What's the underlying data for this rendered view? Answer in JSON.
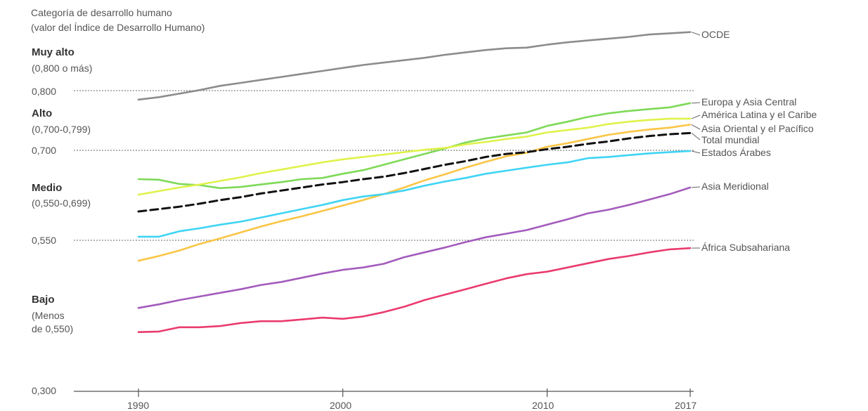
{
  "chart_data": {
    "type": "line",
    "title_line1": "Categoría de desarrollo humano",
    "title_line2": "(valor del Índice de Desarrollo Humano)",
    "categories_text": [
      {
        "name": "Muy alto",
        "range": "(0,800 o más)"
      },
      {
        "name": "Alto",
        "range": "(0,700-0,799)"
      },
      {
        "name": "Medio",
        "range": "(0,550-0,699)"
      },
      {
        "name": "Bajo",
        "range_line1": "(Menos",
        "range_line2": "de 0,550)"
      }
    ],
    "y_ticks": [
      {
        "value": 0.3,
        "label": "0,300"
      },
      {
        "value": 0.55,
        "label": "0,550"
      },
      {
        "value": 0.7,
        "label": "0,700"
      },
      {
        "value": 0.8,
        "label": "0,800"
      }
    ],
    "x_ticks": [
      {
        "value": 1990,
        "label": "1990"
      },
      {
        "value": 2000,
        "label": "2000"
      },
      {
        "value": 2010,
        "label": "2010"
      },
      {
        "value": 2017,
        "label": "2017"
      }
    ],
    "x": [
      1990,
      1991,
      1992,
      1993,
      1994,
      1995,
      1996,
      1997,
      1998,
      1999,
      2000,
      2001,
      2002,
      2003,
      2004,
      2005,
      2006,
      2007,
      2008,
      2009,
      2010,
      2011,
      2012,
      2013,
      2014,
      2015,
      2016,
      2017
    ],
    "series": [
      {
        "name": "OCDE",
        "color": "#8c8c8c",
        "dashed": false,
        "values": [
          0.785,
          0.789,
          0.795,
          0.801,
          0.808,
          0.813,
          0.818,
          0.823,
          0.828,
          0.833,
          0.838,
          0.843,
          0.847,
          0.851,
          0.855,
          0.86,
          0.864,
          0.868,
          0.871,
          0.872,
          0.877,
          0.881,
          0.884,
          0.887,
          0.89,
          0.894,
          0.896,
          0.898
        ]
      },
      {
        "name": "Europa y Asia Central",
        "color": "#7ed957",
        "dashed": false,
        "values": [
          0.652,
          0.651,
          0.644,
          0.642,
          0.637,
          0.639,
          0.643,
          0.647,
          0.652,
          0.654,
          0.661,
          0.667,
          0.676,
          0.685,
          0.694,
          0.703,
          0.713,
          0.72,
          0.725,
          0.73,
          0.741,
          0.748,
          0.756,
          0.762,
          0.766,
          0.769,
          0.772,
          0.779
        ]
      },
      {
        "name": "América Latina y el Caribe",
        "color": "#dff24a",
        "dashed": false,
        "values": [
          0.626,
          0.632,
          0.638,
          0.643,
          0.649,
          0.655,
          0.662,
          0.668,
          0.674,
          0.68,
          0.685,
          0.689,
          0.693,
          0.697,
          0.701,
          0.704,
          0.71,
          0.714,
          0.719,
          0.723,
          0.73,
          0.734,
          0.738,
          0.744,
          0.748,
          0.751,
          0.753,
          0.753
        ]
      },
      {
        "name": "Asia Oriental y el Pacífico",
        "color": "#fbc545",
        "dashed": false,
        "values": [
          0.516,
          0.524,
          0.533,
          0.544,
          0.553,
          0.563,
          0.573,
          0.582,
          0.59,
          0.599,
          0.608,
          0.617,
          0.627,
          0.638,
          0.65,
          0.66,
          0.671,
          0.681,
          0.69,
          0.696,
          0.706,
          0.712,
          0.719,
          0.726,
          0.731,
          0.735,
          0.738,
          0.743
        ]
      },
      {
        "name": "Total mundial",
        "color": "#111111",
        "dashed": true,
        "values": [
          0.598,
          0.602,
          0.606,
          0.611,
          0.617,
          0.622,
          0.628,
          0.633,
          0.638,
          0.643,
          0.647,
          0.652,
          0.656,
          0.662,
          0.669,
          0.676,
          0.682,
          0.689,
          0.694,
          0.697,
          0.702,
          0.706,
          0.711,
          0.715,
          0.72,
          0.724,
          0.727,
          0.729
        ]
      },
      {
        "name": "Estados Árabes",
        "color": "#3fd4f5",
        "dashed": false,
        "values": [
          0.556,
          0.556,
          0.565,
          0.57,
          0.576,
          0.581,
          0.588,
          0.595,
          0.602,
          0.609,
          0.617,
          0.623,
          0.627,
          0.633,
          0.641,
          0.648,
          0.654,
          0.661,
          0.666,
          0.671,
          0.676,
          0.68,
          0.687,
          0.689,
          0.692,
          0.695,
          0.697,
          0.699
        ]
      },
      {
        "name": "Asia Meridional",
        "color": "#a35bbd",
        "dashed": false,
        "values": [
          0.438,
          0.444,
          0.451,
          0.457,
          0.463,
          0.469,
          0.476,
          0.481,
          0.488,
          0.495,
          0.501,
          0.505,
          0.511,
          0.522,
          0.53,
          0.538,
          0.547,
          0.555,
          0.561,
          0.567,
          0.576,
          0.585,
          0.595,
          0.601,
          0.609,
          0.618,
          0.627,
          0.638
        ]
      },
      {
        "name": "África Subsahariana",
        "color": "#ea3b6e",
        "dashed": false,
        "values": [
          0.398,
          0.399,
          0.406,
          0.406,
          0.408,
          0.413,
          0.416,
          0.416,
          0.419,
          0.422,
          0.42,
          0.424,
          0.431,
          0.44,
          0.451,
          0.46,
          0.469,
          0.478,
          0.487,
          0.494,
          0.498,
          0.505,
          0.512,
          0.519,
          0.524,
          0.53,
          0.535,
          0.537
        ]
      }
    ]
  }
}
